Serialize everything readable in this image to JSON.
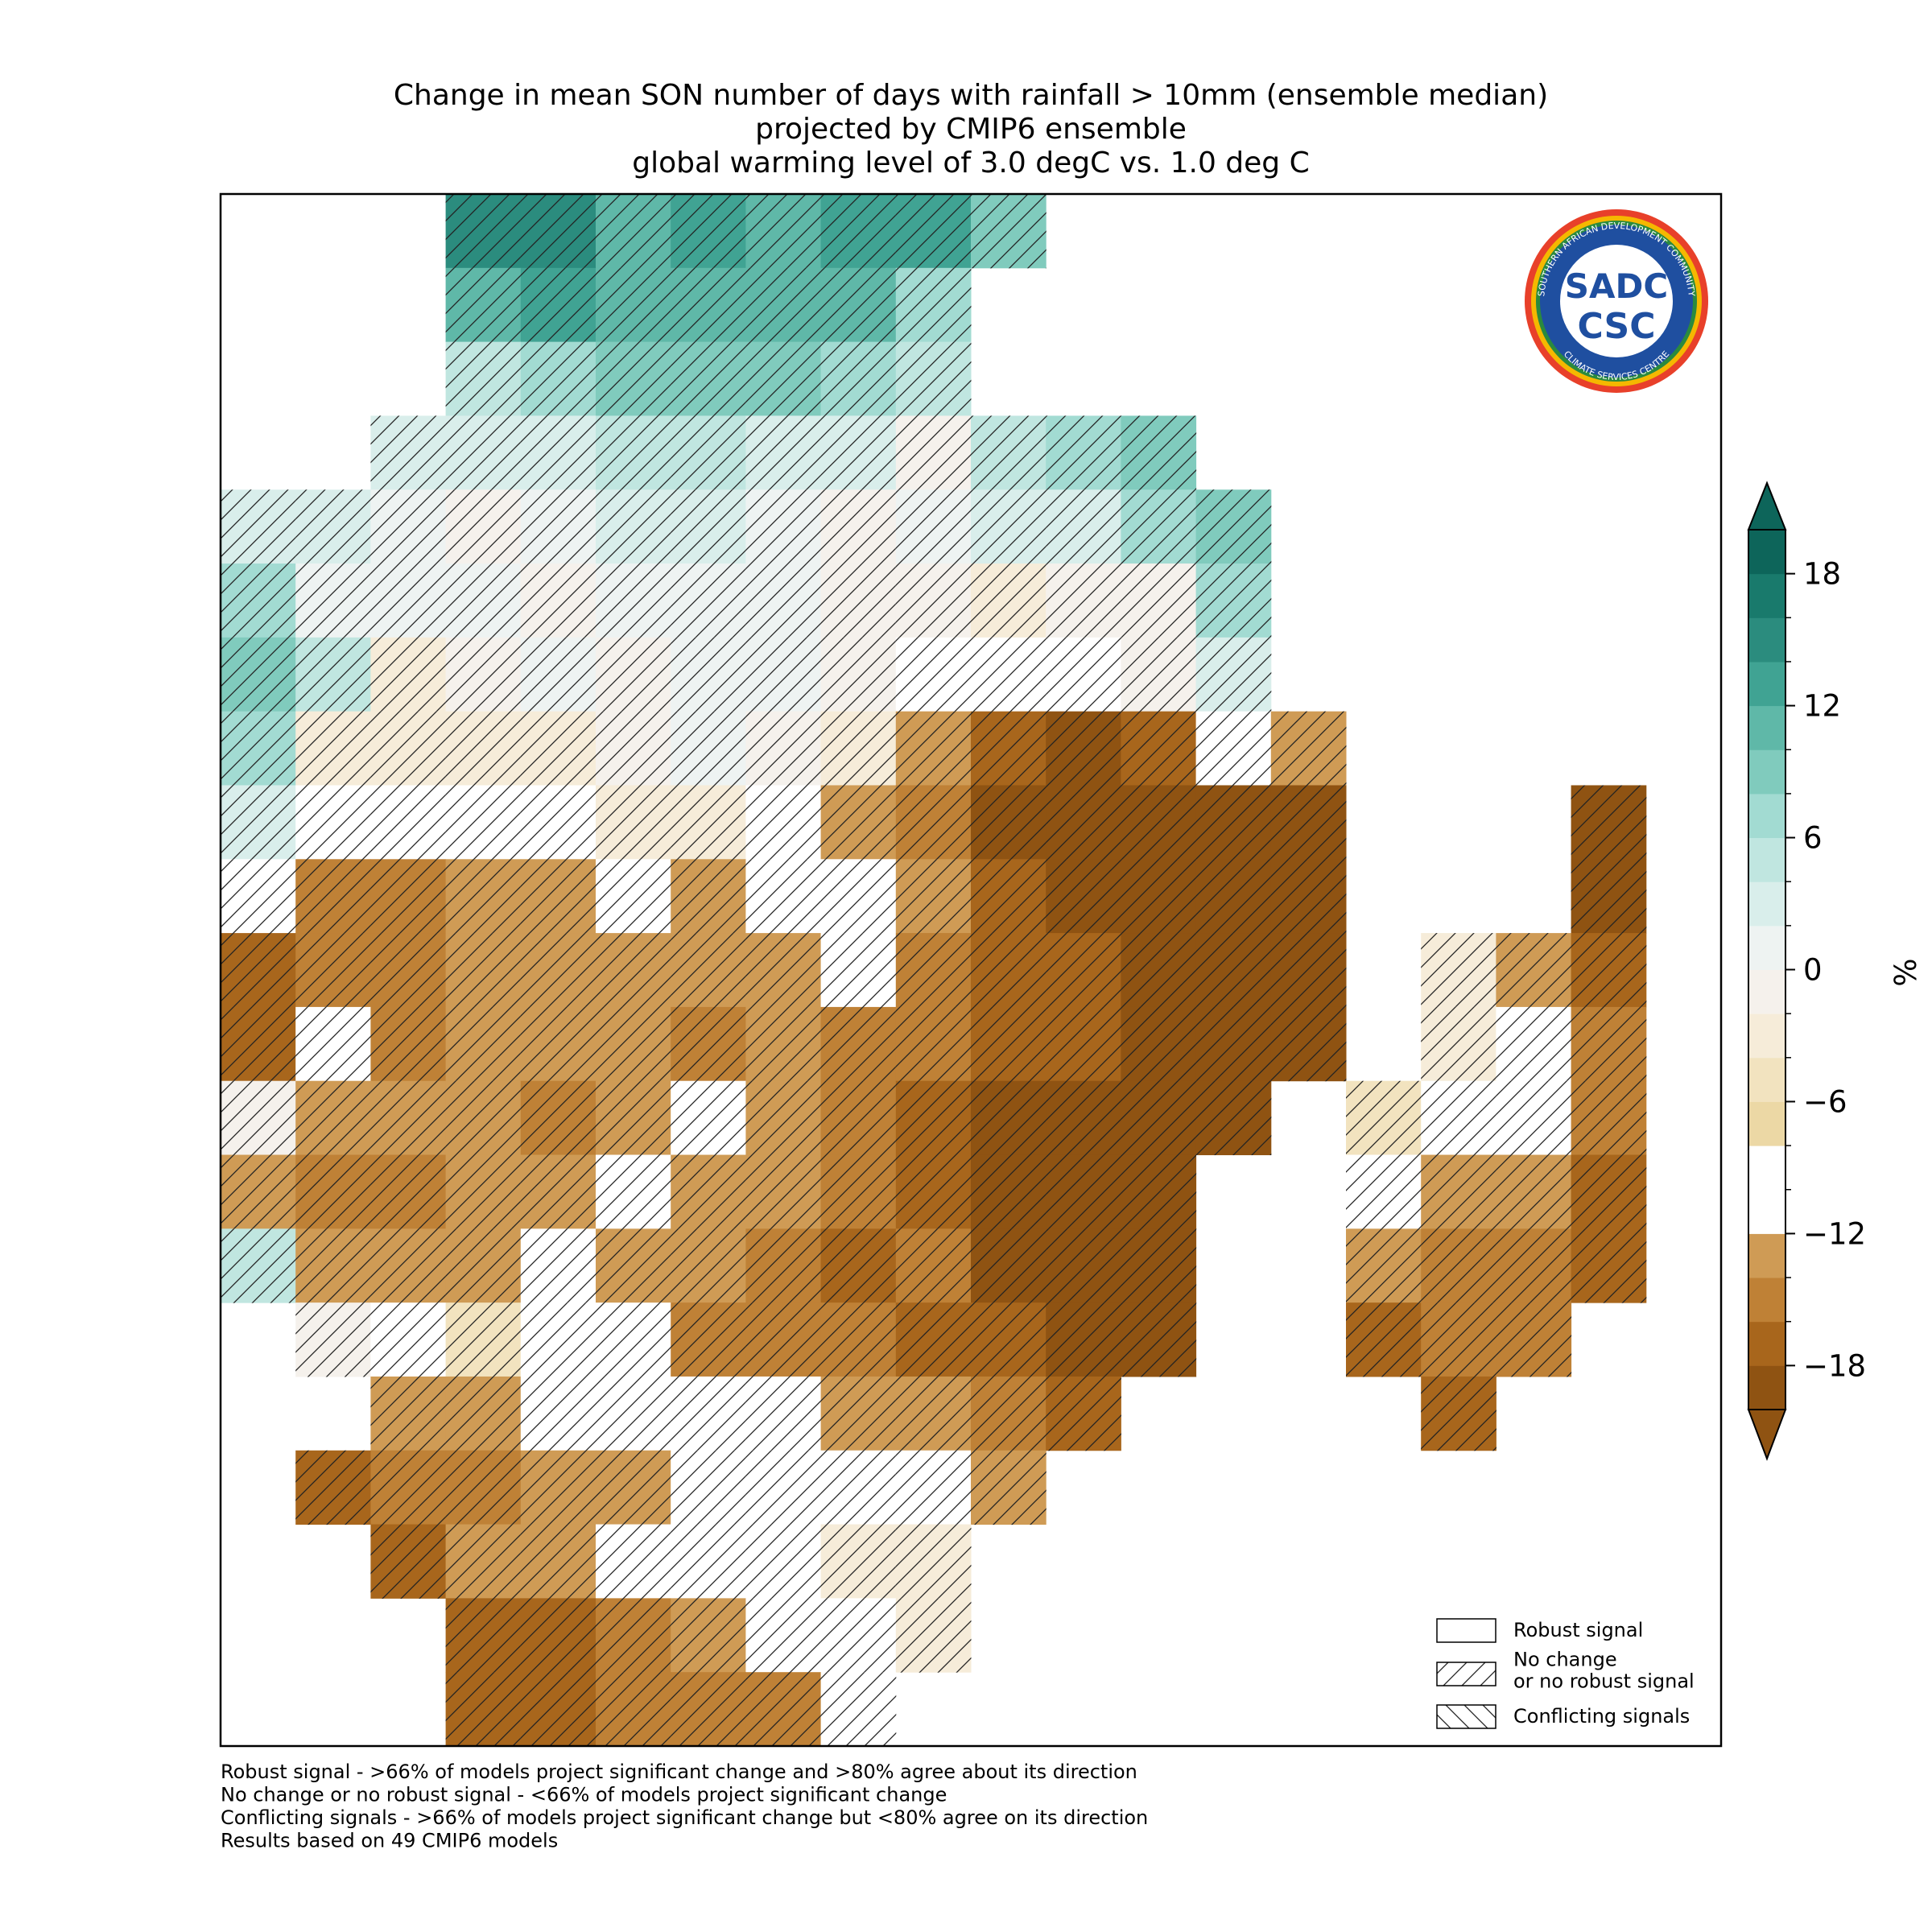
{
  "map": {
    "type": "gridded-map",
    "title": [
      "Change in mean SON number of days with rainfall > 10mm (ensemble median)",
      "projected by CMIP6 ensemble",
      "global warming level of 3.0 degC vs. 1.0 deg C"
    ],
    "grid": {
      "values": [
        [
          null,
          null,
          null,
          14,
          14,
          10,
          12,
          10,
          12,
          12,
          8,
          null,
          null,
          null,
          null,
          null,
          null,
          null,
          null,
          null
        ],
        [
          null,
          null,
          null,
          10,
          12,
          10,
          10,
          10,
          10,
          6,
          null,
          null,
          null,
          null,
          null,
          null,
          null,
          null,
          null,
          null
        ],
        [
          null,
          null,
          null,
          4,
          6,
          8,
          8,
          8,
          6,
          4,
          null,
          null,
          null,
          null,
          null,
          null,
          null,
          null,
          null,
          null
        ],
        [
          null,
          null,
          2,
          2,
          2,
          4,
          4,
          2,
          2,
          -2,
          4,
          6,
          8,
          null,
          null,
          null,
          null,
          null,
          null,
          null
        ],
        [
          2,
          2,
          0,
          -2,
          0,
          2,
          2,
          0,
          -2,
          0,
          2,
          2,
          6,
          8,
          null,
          null,
          null,
          null,
          null,
          null
        ],
        [
          6,
          0,
          0,
          0,
          -2,
          0,
          0,
          0,
          -2,
          -2,
          -4,
          -2,
          -2,
          6,
          null,
          null,
          null,
          null,
          null,
          null
        ],
        [
          8,
          4,
          -4,
          -2,
          0,
          -2,
          0,
          0,
          -2,
          -10,
          -10,
          -10,
          -2,
          2,
          null,
          null,
          null,
          null,
          null,
          null
        ],
        [
          6,
          -4,
          -4,
          -4,
          -4,
          -2,
          0,
          -2,
          -4,
          -14,
          -18,
          -20,
          -18,
          -10,
          -14,
          null,
          null,
          null,
          null,
          null
        ],
        [
          2,
          -10,
          -10,
          -10,
          -10,
          -4,
          -4,
          -10,
          -14,
          -16,
          -20,
          -20,
          -20,
          -20,
          -20,
          null,
          null,
          null,
          -20,
          null
        ],
        [
          -10,
          -16,
          -16,
          -14,
          -14,
          -10,
          -14,
          -10,
          -10,
          -14,
          -18,
          -20,
          -20,
          -20,
          -20,
          null,
          null,
          null,
          -20,
          null
        ],
        [
          -18,
          -16,
          -16,
          -14,
          -14,
          -14,
          -14,
          -14,
          -10,
          -16,
          -18,
          -18,
          -20,
          -20,
          -20,
          null,
          -4,
          -14,
          -18,
          null
        ],
        [
          -18,
          -10,
          -16,
          -14,
          -14,
          -14,
          -16,
          -14,
          -16,
          -16,
          -18,
          -18,
          -20,
          -20,
          -20,
          null,
          -4,
          -10,
          -16,
          null
        ],
        [
          -2,
          -14,
          -14,
          -14,
          -16,
          -14,
          -10,
          -14,
          -16,
          -18,
          -20,
          -20,
          -20,
          -20,
          null,
          -6,
          -10,
          -10,
          -16,
          null
        ],
        [
          -14,
          -16,
          -16,
          -14,
          -14,
          -12,
          -14,
          -14,
          -16,
          -18,
          -20,
          -20,
          -20,
          null,
          null,
          -10,
          -14,
          -14,
          -18,
          null
        ],
        [
          4,
          -14,
          -14,
          -14,
          -10,
          -14,
          -14,
          -16,
          -18,
          -16,
          -20,
          -20,
          -20,
          null,
          null,
          -14,
          -16,
          -16,
          -18,
          null
        ],
        [
          null,
          -2,
          -10,
          -6,
          -10,
          -12,
          -16,
          -16,
          -16,
          -18,
          -18,
          -20,
          -20,
          null,
          null,
          -18,
          -16,
          -16,
          null,
          null
        ],
        [
          null,
          null,
          -14,
          -14,
          -10,
          -10,
          -10,
          -10,
          -14,
          -14,
          -16,
          -18,
          null,
          null,
          null,
          null,
          -18,
          null,
          null,
          null
        ],
        [
          null,
          -18,
          -16,
          -16,
          -14,
          -14,
          -10,
          -10,
          -10,
          -10,
          -14,
          null,
          null,
          null,
          null,
          null,
          null,
          null,
          null,
          null
        ],
        [
          null,
          null,
          -18,
          -14,
          -14,
          -10,
          -10,
          -10,
          -4,
          -4,
          null,
          null,
          null,
          null,
          null,
          null,
          null,
          null,
          null,
          null
        ],
        [
          null,
          null,
          null,
          -18,
          -18,
          -16,
          -14,
          -10,
          -10,
          -4,
          null,
          null,
          null,
          null,
          null,
          null,
          null,
          null,
          null,
          null
        ],
        [
          null,
          null,
          null,
          -18,
          -18,
          -16,
          -16,
          -16,
          -10,
          null,
          null,
          null,
          null,
          null,
          null,
          null,
          null,
          null,
          null,
          null
        ]
      ]
    },
    "colorbar": {
      "clim": [
        -20,
        20
      ],
      "ticks": [
        -18,
        -12,
        -6,
        0,
        6,
        12,
        18
      ],
      "ticklabels": [
        {
          "value": -18,
          "label": "−18"
        },
        {
          "value": -12,
          "label": "−12"
        },
        {
          "value": -6,
          "label": "−6"
        },
        {
          "value": 0,
          "label": "0"
        },
        {
          "value": 6,
          "label": "6"
        },
        {
          "value": 12,
          "label": "12"
        },
        {
          "value": 18,
          "label": "18"
        }
      ],
      "colors": [
        "#8f5312",
        "#a8661c",
        "#bf8136",
        "#cf9b55",
        "#ffffff",
        "#ffffff",
        "#ecd8a5",
        "#f2e3bf",
        "#f6ecd9",
        "#f5f1ec",
        "#eef3f2",
        "#d9eeeb",
        "#c0e6e0",
        "#a2dbd2",
        "#80cbbd",
        "#5fb8a8",
        "#40a393",
        "#2b8c7e",
        "#197a6c",
        "#0d655a"
      ],
      "label": "%"
    },
    "legend": [
      {
        "label": [
          "Robust signal"
        ],
        "hatch": "none"
      },
      {
        "label": [
          "No change",
          "or no robust signal"
        ],
        "hatch": "forward"
      },
      {
        "label": [
          "Conflicting signals"
        ],
        "hatch": "backward"
      }
    ],
    "footnotes": [
      "Robust signal - >66% of models project significant change and >80% agree about its direction",
      "No change or no robust signal - <66% of models project significant change",
      "Conflicting signals - >66% of models project significant change but <80% agree on its direction",
      "Results based on 49 CMIP6 models"
    ],
    "logo": {
      "main": "SADC",
      "sub": "CSC",
      "ring_top": "SOUTHERN AFRICAN DEVELOPMENT COMMUNITY",
      "ring_bottom": "CLIMATE SERVICES CENTRE"
    }
  }
}
